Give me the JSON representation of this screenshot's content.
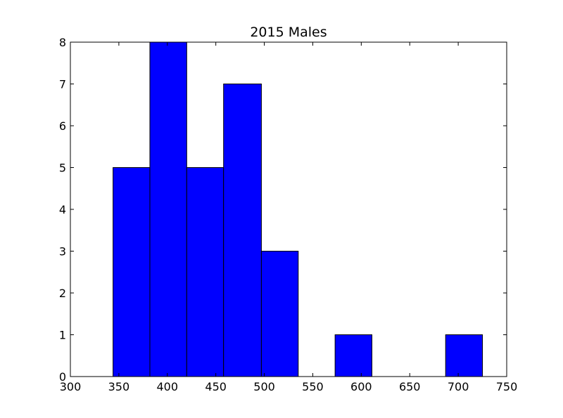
{
  "chart_data": {
    "type": "bar",
    "subtype": "histogram",
    "title": "2015 Males",
    "xlabel": "",
    "ylabel": "",
    "xlim": [
      300,
      750
    ],
    "ylim": [
      0,
      8
    ],
    "xticks": [
      300,
      350,
      400,
      450,
      500,
      550,
      600,
      650,
      700,
      750
    ],
    "yticks": [
      0,
      1,
      2,
      3,
      4,
      5,
      6,
      7,
      8
    ],
    "bin_edges": [
      344,
      382,
      420,
      458,
      497,
      535,
      573,
      611,
      649,
      687,
      725
    ],
    "counts": [
      5,
      8,
      5,
      7,
      3,
      0,
      1,
      0,
      0,
      1
    ],
    "bar_color": "#0000ff",
    "edge_color": "#000000",
    "grid": false,
    "legend": "none"
  }
}
